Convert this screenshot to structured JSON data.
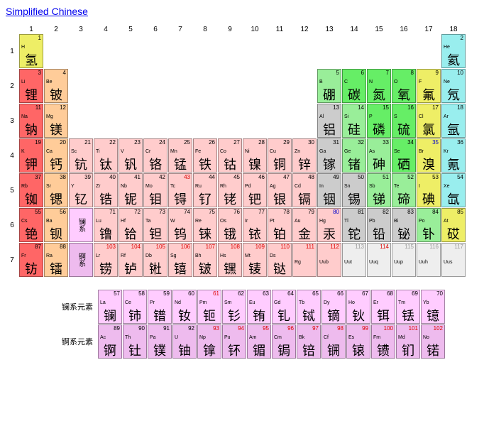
{
  "title": "Simplified Chinese",
  "colors": {
    "alkali": "#ff6666",
    "alkaline": "#ffcc99",
    "transition": "#ffcccc",
    "postmetal": "#cccccc",
    "metalloid": "#99ee99",
    "nonmetal": "#66ee66",
    "halogen": "#eeee66",
    "noble": "#99eeee",
    "lan": "#ffccff",
    "act": "#eebbee",
    "hydrogen": "#eeee66",
    "unknownbg": "#eeeeee"
  },
  "series_labels": {
    "lan": "镧系",
    "act": "锕系"
  },
  "row_labels": {
    "lan": "镧系元素",
    "act": "锕系元素"
  },
  "elements": [
    {
      "z": 1,
      "sym": "H",
      "cn": "氢",
      "row": 1,
      "col": 1,
      "bg": "hydrogen"
    },
    {
      "z": 2,
      "sym": "He",
      "cn": "氦",
      "row": 1,
      "col": 18,
      "bg": "noble"
    },
    {
      "z": 3,
      "sym": "Li",
      "cn": "锂",
      "row": 2,
      "col": 1,
      "bg": "alkali"
    },
    {
      "z": 4,
      "sym": "Be",
      "cn": "铍",
      "row": 2,
      "col": 2,
      "bg": "alkaline"
    },
    {
      "z": 5,
      "sym": "B",
      "cn": "硼",
      "row": 2,
      "col": 13,
      "bg": "metalloid"
    },
    {
      "z": 6,
      "sym": "C",
      "cn": "碳",
      "row": 2,
      "col": 14,
      "bg": "nonmetal"
    },
    {
      "z": 7,
      "sym": "N",
      "cn": "氮",
      "row": 2,
      "col": 15,
      "bg": "nonmetal"
    },
    {
      "z": 8,
      "sym": "O",
      "cn": "氧",
      "row": 2,
      "col": 16,
      "bg": "nonmetal"
    },
    {
      "z": 9,
      "sym": "F",
      "cn": "氟",
      "row": 2,
      "col": 17,
      "bg": "halogen"
    },
    {
      "z": 10,
      "sym": "Ne",
      "cn": "氖",
      "row": 2,
      "col": 18,
      "bg": "noble"
    },
    {
      "z": 11,
      "sym": "Na",
      "cn": "钠",
      "row": 3,
      "col": 1,
      "bg": "alkali"
    },
    {
      "z": 12,
      "sym": "Mg",
      "cn": "镁",
      "row": 3,
      "col": 2,
      "bg": "alkaline"
    },
    {
      "z": 13,
      "sym": "Al",
      "cn": "铝",
      "row": 3,
      "col": 13,
      "bg": "postmetal"
    },
    {
      "z": 14,
      "sym": "Si",
      "cn": "硅",
      "row": 3,
      "col": 14,
      "bg": "metalloid"
    },
    {
      "z": 15,
      "sym": "P",
      "cn": "磷",
      "row": 3,
      "col": 15,
      "bg": "nonmetal"
    },
    {
      "z": 16,
      "sym": "S",
      "cn": "硫",
      "row": 3,
      "col": 16,
      "bg": "nonmetal"
    },
    {
      "z": 17,
      "sym": "Cl",
      "cn": "氯",
      "row": 3,
      "col": 17,
      "bg": "halogen"
    },
    {
      "z": 18,
      "sym": "Ar",
      "cn": "氩",
      "row": 3,
      "col": 18,
      "bg": "noble"
    },
    {
      "z": 19,
      "sym": "K",
      "cn": "钾",
      "row": 4,
      "col": 1,
      "bg": "alkali"
    },
    {
      "z": 20,
      "sym": "Ca",
      "cn": "钙",
      "row": 4,
      "col": 2,
      "bg": "alkaline"
    },
    {
      "z": 21,
      "sym": "Sc",
      "cn": "钪",
      "row": 4,
      "col": 3,
      "bg": "transition"
    },
    {
      "z": 22,
      "sym": "Ti",
      "cn": "钛",
      "row": 4,
      "col": 4,
      "bg": "transition"
    },
    {
      "z": 23,
      "sym": "V",
      "cn": "钒",
      "row": 4,
      "col": 5,
      "bg": "transition"
    },
    {
      "z": 24,
      "sym": "Cr",
      "cn": "铬",
      "row": 4,
      "col": 6,
      "bg": "transition"
    },
    {
      "z": 25,
      "sym": "Mn",
      "cn": "锰",
      "row": 4,
      "col": 7,
      "bg": "transition"
    },
    {
      "z": 26,
      "sym": "Fe",
      "cn": "铁",
      "row": 4,
      "col": 8,
      "bg": "transition"
    },
    {
      "z": 27,
      "sym": "Co",
      "cn": "钴",
      "row": 4,
      "col": 9,
      "bg": "transition"
    },
    {
      "z": 28,
      "sym": "Ni",
      "cn": "镍",
      "row": 4,
      "col": 10,
      "bg": "transition"
    },
    {
      "z": 29,
      "sym": "Cu",
      "cn": "铜",
      "row": 4,
      "col": 11,
      "bg": "transition"
    },
    {
      "z": 30,
      "sym": "Zn",
      "cn": "锌",
      "row": 4,
      "col": 12,
      "bg": "transition"
    },
    {
      "z": 31,
      "sym": "Ga",
      "cn": "镓",
      "row": 4,
      "col": 13,
      "bg": "postmetal"
    },
    {
      "z": 32,
      "sym": "Ge",
      "cn": "锗",
      "row": 4,
      "col": 14,
      "bg": "metalloid"
    },
    {
      "z": 33,
      "sym": "As",
      "cn": "砷",
      "row": 4,
      "col": 15,
      "bg": "metalloid"
    },
    {
      "z": 34,
      "sym": "Se",
      "cn": "硒",
      "row": 4,
      "col": 16,
      "bg": "nonmetal"
    },
    {
      "z": 35,
      "sym": "Br",
      "cn": "溴",
      "row": 4,
      "col": 17,
      "bg": "halogen",
      "zc": "blue"
    },
    {
      "z": 36,
      "sym": "Kr",
      "cn": "氪",
      "row": 4,
      "col": 18,
      "bg": "noble"
    },
    {
      "z": 37,
      "sym": "Rb",
      "cn": "铷",
      "row": 5,
      "col": 1,
      "bg": "alkali"
    },
    {
      "z": 38,
      "sym": "Sr",
      "cn": "锶",
      "row": 5,
      "col": 2,
      "bg": "alkaline"
    },
    {
      "z": 39,
      "sym": "Y",
      "cn": "钇",
      "row": 5,
      "col": 3,
      "bg": "transition"
    },
    {
      "z": 40,
      "sym": "Zr",
      "cn": "锆",
      "row": 5,
      "col": 4,
      "bg": "transition"
    },
    {
      "z": 41,
      "sym": "Nb",
      "cn": "铌",
      "row": 5,
      "col": 5,
      "bg": "transition"
    },
    {
      "z": 42,
      "sym": "Mo",
      "cn": "钼",
      "row": 5,
      "col": 6,
      "bg": "transition"
    },
    {
      "z": 43,
      "sym": "Tc",
      "cn": "锝",
      "row": 5,
      "col": 7,
      "bg": "transition",
      "zc": "red"
    },
    {
      "z": 44,
      "sym": "Ru",
      "cn": "钌",
      "row": 5,
      "col": 8,
      "bg": "transition"
    },
    {
      "z": 45,
      "sym": "Rh",
      "cn": "铑",
      "row": 5,
      "col": 9,
      "bg": "transition"
    },
    {
      "z": 46,
      "sym": "Pd",
      "cn": "钯",
      "row": 5,
      "col": 10,
      "bg": "transition"
    },
    {
      "z": 47,
      "sym": "Ag",
      "cn": "银",
      "row": 5,
      "col": 11,
      "bg": "transition"
    },
    {
      "z": 48,
      "sym": "Cd",
      "cn": "镉",
      "row": 5,
      "col": 12,
      "bg": "transition"
    },
    {
      "z": 49,
      "sym": "In",
      "cn": "铟",
      "row": 5,
      "col": 13,
      "bg": "postmetal"
    },
    {
      "z": 50,
      "sym": "Sn",
      "cn": "锡",
      "row": 5,
      "col": 14,
      "bg": "postmetal"
    },
    {
      "z": 51,
      "sym": "Sb",
      "cn": "锑",
      "row": 5,
      "col": 15,
      "bg": "metalloid"
    },
    {
      "z": 52,
      "sym": "Te",
      "cn": "碲",
      "row": 5,
      "col": 16,
      "bg": "metalloid"
    },
    {
      "z": 53,
      "sym": "I",
      "cn": "碘",
      "row": 5,
      "col": 17,
      "bg": "halogen"
    },
    {
      "z": 54,
      "sym": "Xe",
      "cn": "氙",
      "row": 5,
      "col": 18,
      "bg": "noble"
    },
    {
      "z": 55,
      "sym": "Cs",
      "cn": "铯",
      "row": 6,
      "col": 1,
      "bg": "alkali"
    },
    {
      "z": 56,
      "sym": "Ba",
      "cn": "钡",
      "row": 6,
      "col": 2,
      "bg": "alkaline"
    },
    {
      "z": 71,
      "sym": "Lu",
      "cn": "镥",
      "row": 6,
      "col": 3,
      "bg": "transition"
    },
    {
      "z": 72,
      "sym": "Hf",
      "cn": "铪",
      "row": 6,
      "col": 4,
      "bg": "transition"
    },
    {
      "z": 73,
      "sym": "Ta",
      "cn": "钽",
      "row": 6,
      "col": 5,
      "bg": "transition"
    },
    {
      "z": 74,
      "sym": "W",
      "cn": "钨",
      "row": 6,
      "col": 6,
      "bg": "transition"
    },
    {
      "z": 75,
      "sym": "Re",
      "cn": "铼",
      "row": 6,
      "col": 7,
      "bg": "transition"
    },
    {
      "z": 76,
      "sym": "Os",
      "cn": "锇",
      "row": 6,
      "col": 8,
      "bg": "transition"
    },
    {
      "z": 77,
      "sym": "Ir",
      "cn": "铱",
      "row": 6,
      "col": 9,
      "bg": "transition"
    },
    {
      "z": 78,
      "sym": "Pt",
      "cn": "铂",
      "row": 6,
      "col": 10,
      "bg": "transition"
    },
    {
      "z": 79,
      "sym": "Au",
      "cn": "金",
      "row": 6,
      "col": 11,
      "bg": "transition"
    },
    {
      "z": 80,
      "sym": "Hg",
      "cn": "汞",
      "row": 6,
      "col": 12,
      "bg": "transition",
      "zc": "blue"
    },
    {
      "z": 81,
      "sym": "Tl",
      "cn": "铊",
      "row": 6,
      "col": 13,
      "bg": "postmetal"
    },
    {
      "z": 82,
      "sym": "Pb",
      "cn": "铅",
      "row": 6,
      "col": 14,
      "bg": "postmetal"
    },
    {
      "z": 83,
      "sym": "Bi",
      "cn": "铋",
      "row": 6,
      "col": 15,
      "bg": "postmetal"
    },
    {
      "z": 84,
      "sym": "Po",
      "cn": "钋",
      "row": 6,
      "col": 16,
      "bg": "metalloid"
    },
    {
      "z": 85,
      "sym": "At",
      "cn": "砹",
      "row": 6,
      "col": 17,
      "bg": "halogen"
    },
    {
      "z": 86,
      "sym": "Rn",
      "cn": "氡",
      "row": 6,
      "col": 18,
      "bg": "noble"
    },
    {
      "z": 87,
      "sym": "Fr",
      "cn": "钫",
      "row": 7,
      "col": 1,
      "bg": "alkali"
    },
    {
      "z": 88,
      "sym": "Ra",
      "cn": "镭",
      "row": 7,
      "col": 2,
      "bg": "alkaline"
    },
    {
      "z": 103,
      "sym": "Lr",
      "cn": "铹",
      "row": 7,
      "col": 3,
      "bg": "transition",
      "zc": "red"
    },
    {
      "z": 104,
      "sym": "Rf",
      "cn": "𬬻",
      "row": 7,
      "col": 4,
      "bg": "transition",
      "zc": "red"
    },
    {
      "z": 105,
      "sym": "Db",
      "cn": "𬭊",
      "row": 7,
      "col": 5,
      "bg": "transition",
      "zc": "red"
    },
    {
      "z": 106,
      "sym": "Sg",
      "cn": "𬭳",
      "row": 7,
      "col": 6,
      "bg": "transition",
      "zc": "red"
    },
    {
      "z": 107,
      "sym": "Bh",
      "cn": "𬭛",
      "row": 7,
      "col": 7,
      "bg": "transition",
      "zc": "red"
    },
    {
      "z": 108,
      "sym": "Hs",
      "cn": "𬭶",
      "row": 7,
      "col": 8,
      "bg": "transition",
      "zc": "red"
    },
    {
      "z": 109,
      "sym": "Mt",
      "cn": "鿏",
      "row": 7,
      "col": 9,
      "bg": "transition",
      "zc": "red"
    },
    {
      "z": 110,
      "sym": "Ds",
      "cn": "𫟼",
      "row": 7,
      "col": 10,
      "bg": "transition",
      "zc": "red"
    },
    {
      "z": 111,
      "sym": "Rg",
      "cn": "",
      "row": 7,
      "col": 11,
      "bg": "transition",
      "zc": "red"
    },
    {
      "z": 112,
      "sym": "Uub",
      "cn": "",
      "row": 7,
      "col": 12,
      "bg": "transition",
      "zc": "red"
    },
    {
      "z": 113,
      "sym": "Uut",
      "cn": "",
      "row": 7,
      "col": 13,
      "bg": "unknownbg",
      "zc": "gray"
    },
    {
      "z": 114,
      "sym": "Uuq",
      "cn": "",
      "row": 7,
      "col": 14,
      "bg": "unknownbg",
      "zc": "red"
    },
    {
      "z": 115,
      "sym": "Uup",
      "cn": "",
      "row": 7,
      "col": 15,
      "bg": "unknownbg",
      "zc": "gray"
    },
    {
      "z": 116,
      "sym": "Uuh",
      "cn": "",
      "row": 7,
      "col": 16,
      "bg": "unknownbg",
      "zc": "gray"
    },
    {
      "z": 117,
      "sym": "Uus",
      "cn": "",
      "row": 7,
      "col": 17,
      "bg": "unknownbg",
      "zc": "gray"
    },
    {
      "z": 118,
      "sym": "Uuo",
      "cn": "",
      "row": 7,
      "col": 18,
      "bg": "unknownbg",
      "zc": "gray"
    }
  ],
  "lanthanides": [
    {
      "z": 57,
      "sym": "La",
      "cn": "镧"
    },
    {
      "z": 58,
      "sym": "Ce",
      "cn": "铈"
    },
    {
      "z": 59,
      "sym": "Pr",
      "cn": "镨"
    },
    {
      "z": 60,
      "sym": "Nd",
      "cn": "钕"
    },
    {
      "z": 61,
      "sym": "Pm",
      "cn": "钷",
      "zc": "red"
    },
    {
      "z": 62,
      "sym": "Sm",
      "cn": "钐"
    },
    {
      "z": 63,
      "sym": "Eu",
      "cn": "铕"
    },
    {
      "z": 64,
      "sym": "Gd",
      "cn": "钆"
    },
    {
      "z": 65,
      "sym": "Tb",
      "cn": "铽"
    },
    {
      "z": 66,
      "sym": "Dy",
      "cn": "镝"
    },
    {
      "z": 67,
      "sym": "Ho",
      "cn": "钬"
    },
    {
      "z": 68,
      "sym": "Er",
      "cn": "铒"
    },
    {
      "z": 69,
      "sym": "Tm",
      "cn": "铥"
    },
    {
      "z": 70,
      "sym": "Yb",
      "cn": "镱"
    }
  ],
  "actinides": [
    {
      "z": 89,
      "sym": "Ac",
      "cn": "锕"
    },
    {
      "z": 90,
      "sym": "Th",
      "cn": "钍"
    },
    {
      "z": 91,
      "sym": "Pa",
      "cn": "镤"
    },
    {
      "z": 92,
      "sym": "U",
      "cn": "铀"
    },
    {
      "z": 93,
      "sym": "Np",
      "cn": "镎",
      "zc": "red"
    },
    {
      "z": 94,
      "sym": "Pu",
      "cn": "钚",
      "zc": "red"
    },
    {
      "z": 95,
      "sym": "Am",
      "cn": "镅",
      "zc": "red"
    },
    {
      "z": 96,
      "sym": "Cm",
      "cn": "锔",
      "zc": "red"
    },
    {
      "z": 97,
      "sym": "Bk",
      "cn": "锫",
      "zc": "red"
    },
    {
      "z": 98,
      "sym": "Cf",
      "cn": "锎",
      "zc": "red"
    },
    {
      "z": 99,
      "sym": "Es",
      "cn": "锿",
      "zc": "red"
    },
    {
      "z": 100,
      "sym": "Fm",
      "cn": "镄",
      "zc": "red"
    },
    {
      "z": 101,
      "sym": "Md",
      "cn": "钔",
      "zc": "red"
    },
    {
      "z": 102,
      "sym": "No",
      "cn": "锘",
      "zc": "red"
    }
  ]
}
